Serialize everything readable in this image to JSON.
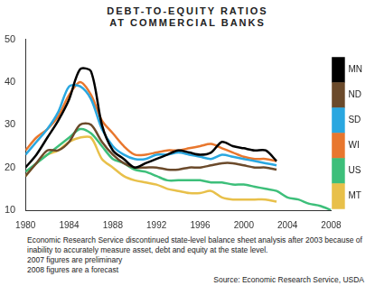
{
  "chart_data": {
    "type": "line",
    "title": "DEBT-TO-EQUITY RATIOS\nAT COMMERCIAL BANKS",
    "x": [
      1980,
      1981,
      1982,
      1983,
      1984,
      1985,
      1986,
      1987,
      1988,
      1989,
      1990,
      1991,
      1992,
      1993,
      1994,
      1995,
      1996,
      1997,
      1998,
      1999,
      2000,
      2001,
      2002,
      2003,
      2004,
      2005,
      2006,
      2007,
      2008
    ],
    "series": [
      {
        "name": "MN",
        "color": "#000000",
        "values": [
          20,
          23,
          27,
          31,
          36,
          43,
          42.5,
          30,
          24,
          22,
          20,
          21,
          22,
          23,
          24,
          23.5,
          23,
          23.5,
          26,
          25,
          24.5,
          24,
          24,
          21.5,
          null,
          null,
          null,
          null,
          null
        ]
      },
      {
        "name": "ND",
        "color": "#6b4a2b",
        "values": [
          18,
          21,
          24,
          24,
          26,
          30,
          30,
          26,
          23,
          21,
          20,
          20,
          20,
          19.5,
          19.5,
          20,
          20,
          20.5,
          21,
          21,
          20.5,
          20,
          20,
          19.5,
          null,
          null,
          null,
          null,
          null
        ]
      },
      {
        "name": "SD",
        "color": "#2aa7e0",
        "values": [
          23,
          26,
          29,
          33,
          39,
          39,
          36,
          29,
          25,
          23,
          22,
          22,
          23,
          23,
          23.5,
          23,
          22.5,
          22,
          23,
          22.5,
          22,
          21.5,
          21,
          20.5,
          null,
          null,
          null,
          null,
          null
        ]
      },
      {
        "name": "WI",
        "color": "#e8772e",
        "values": [
          24,
          27,
          29,
          32,
          37,
          40,
          37,
          31,
          28,
          25,
          23,
          23,
          23.5,
          24,
          24,
          24.5,
          25,
          25.5,
          24.5,
          23.5,
          22.5,
          22,
          22,
          21.5,
          null,
          null,
          null,
          null,
          null
        ]
      },
      {
        "name": "US",
        "color": "#3dbf7a",
        "values": [
          19,
          21,
          23,
          25,
          27,
          29,
          28,
          25,
          22,
          21,
          19.5,
          19,
          18,
          17,
          17,
          17,
          17,
          16.5,
          16.5,
          16,
          16,
          15.5,
          15,
          14.5,
          13,
          12.5,
          11.5,
          11,
          10
        ]
      },
      {
        "name": "MT",
        "color": "#e8c04a",
        "values": [
          18,
          21,
          23,
          24,
          26,
          27,
          27,
          22,
          20,
          18,
          17,
          16.5,
          16,
          15,
          14.5,
          14,
          14,
          14.5,
          13,
          12.5,
          12.5,
          12.5,
          12.5,
          12,
          null,
          null,
          null,
          null,
          null
        ]
      }
    ],
    "xlim": [
      1980,
      2008
    ],
    "xticks": [
      1980,
      1984,
      1988,
      1992,
      1996,
      2000,
      2004,
      2008
    ],
    "ylim": [
      10,
      50
    ],
    "yticks": [
      10,
      20,
      30,
      40,
      50
    ],
    "grid": false,
    "legend": "right",
    "annotations": [
      "Economic Research Service discontinued state-level balance sheet analysis after 2003 because of inability to accurately measure asset, debt and equity at the state level.",
      "2007 figures are preliminary",
      "2008 figures are a forecast"
    ],
    "source": "Source: Economic Research Service, USDA"
  }
}
